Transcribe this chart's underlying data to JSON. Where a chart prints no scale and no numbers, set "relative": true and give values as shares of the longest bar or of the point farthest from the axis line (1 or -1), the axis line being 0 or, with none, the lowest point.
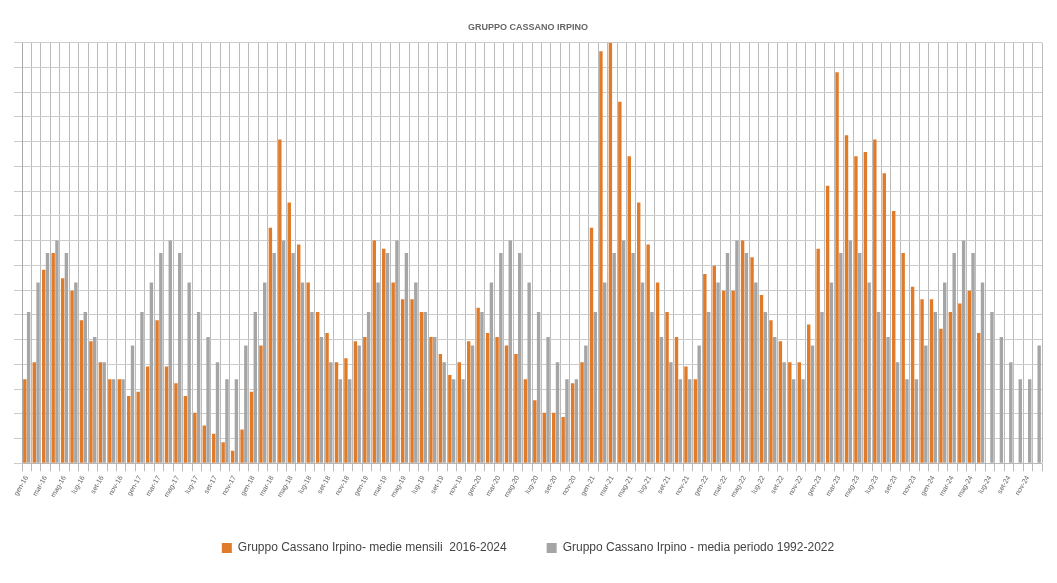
{
  "chart_data": {
    "type": "bar",
    "title": "GRUPPO CASSANO IRPINO",
    "relative": true,
    "grid": true,
    "legend": "bottom",
    "categories": [
      "gen-16",
      null,
      "mar-16",
      null,
      "mag-16",
      null,
      "lug-16",
      null,
      "set-16",
      null,
      "nov-16",
      null,
      "gen-17",
      null,
      "mar-17",
      null,
      "mag-17",
      null,
      "lug-17",
      null,
      "set-17",
      null,
      "nov-17",
      null,
      "gen-18",
      null,
      "mar-18",
      null,
      "mag-18",
      null,
      "lug-18",
      null,
      "set-18",
      null,
      "nov-18",
      null,
      "gen-19",
      null,
      "mar-19",
      null,
      "mag-19",
      null,
      "lug-19",
      null,
      "set-19",
      null,
      "nov-19",
      null,
      "gen-20",
      null,
      "mar-20",
      null,
      "mag-20",
      null,
      "lug-20",
      null,
      "set-20",
      null,
      "nov-20",
      null,
      "gen-21",
      null,
      "mar-21",
      null,
      "mag-21",
      null,
      "lug-21",
      null,
      "set-21",
      null,
      "nov-21",
      null,
      "gen-22",
      null,
      "mar-22",
      null,
      "mag-22",
      null,
      "lug-22",
      null,
      "set-22",
      null,
      "nov-22",
      null,
      "gen-23",
      null,
      "mar-23",
      null,
      "mag-23",
      null,
      "lug-23",
      null,
      "set-23",
      null,
      "nov-23",
      null,
      "gen-24",
      null,
      "mar-24",
      null,
      "mag-24",
      null,
      "lug-24",
      null,
      "set-24",
      null,
      "nov-24",
      null
    ],
    "series": [
      {
        "name": "Gruppo Cassano Irpino- medie mensili  2016-2024",
        "color": "#e07b2a",
        "values": [
          0.2,
          0.24,
          0.46,
          0.5,
          0.44,
          0.41,
          0.34,
          0.29,
          0.24,
          0.2,
          0.2,
          0.16,
          0.17,
          0.23,
          0.34,
          0.23,
          0.19,
          0.16,
          0.12,
          0.09,
          0.07,
          0.05,
          0.03,
          0.08,
          0.17,
          0.28,
          0.56,
          0.77,
          0.62,
          0.52,
          0.43,
          0.36,
          0.31,
          0.24,
          0.25,
          0.29,
          0.3,
          0.53,
          0.51,
          0.43,
          0.39,
          0.39,
          0.36,
          0.3,
          0.26,
          0.21,
          0.24,
          0.29,
          0.37,
          0.31,
          0.3,
          0.28,
          0.26,
          0.2,
          0.15,
          0.12,
          0.12,
          0.11,
          0.19,
          0.24,
          0.56,
          0.98,
          1,
          0.86,
          0.73,
          0.62,
          0.52,
          0.43,
          0.36,
          0.3,
          0.23,
          0.2,
          0.45,
          0.47,
          0.41,
          0.41,
          0.53,
          0.49,
          0.4,
          0.34,
          0.29,
          0.24,
          0.24,
          0.33,
          0.51,
          0.66,
          0.93,
          0.78,
          0.73,
          0.74,
          0.77,
          0.69,
          0.6,
          0.5,
          0.42,
          0.39,
          0.39,
          0.32,
          0.36,
          0.38,
          0.41,
          0.31,
          null,
          null,
          null,
          null,
          null,
          null
        ]
      },
      {
        "name": "Gruppo Cassano Irpino - media periodo 1992-2022",
        "color": "#a5a5a5",
        "values": [
          0.36,
          0.43,
          0.5,
          0.53,
          0.5,
          0.43,
          0.36,
          0.3,
          0.24,
          0.2,
          0.2,
          0.28,
          0.36,
          0.43,
          0.5,
          0.53,
          0.5,
          0.43,
          0.36,
          0.3,
          0.24,
          0.2,
          0.2,
          0.28,
          0.36,
          0.43,
          0.5,
          0.53,
          0.5,
          0.43,
          0.36,
          0.3,
          0.24,
          0.2,
          0.2,
          0.28,
          0.36,
          0.43,
          0.5,
          0.53,
          0.5,
          0.43,
          0.36,
          0.3,
          0.24,
          0.2,
          0.2,
          0.28,
          0.36,
          0.43,
          0.5,
          0.53,
          0.5,
          0.43,
          0.36,
          0.3,
          0.24,
          0.2,
          0.2,
          0.28,
          0.36,
          0.43,
          0.5,
          0.53,
          0.5,
          0.43,
          0.36,
          0.3,
          0.24,
          0.2,
          0.2,
          0.28,
          0.36,
          0.43,
          0.5,
          0.53,
          0.5,
          0.43,
          0.36,
          0.3,
          0.24,
          0.2,
          0.2,
          0.28,
          0.36,
          0.43,
          0.5,
          0.53,
          0.5,
          0.43,
          0.36,
          0.3,
          0.24,
          0.2,
          0.2,
          0.28,
          0.36,
          0.43,
          0.5,
          0.53,
          0.5,
          0.43,
          0.36,
          0.3,
          0.24,
          0.2,
          0.2,
          0.28
        ]
      }
    ]
  }
}
